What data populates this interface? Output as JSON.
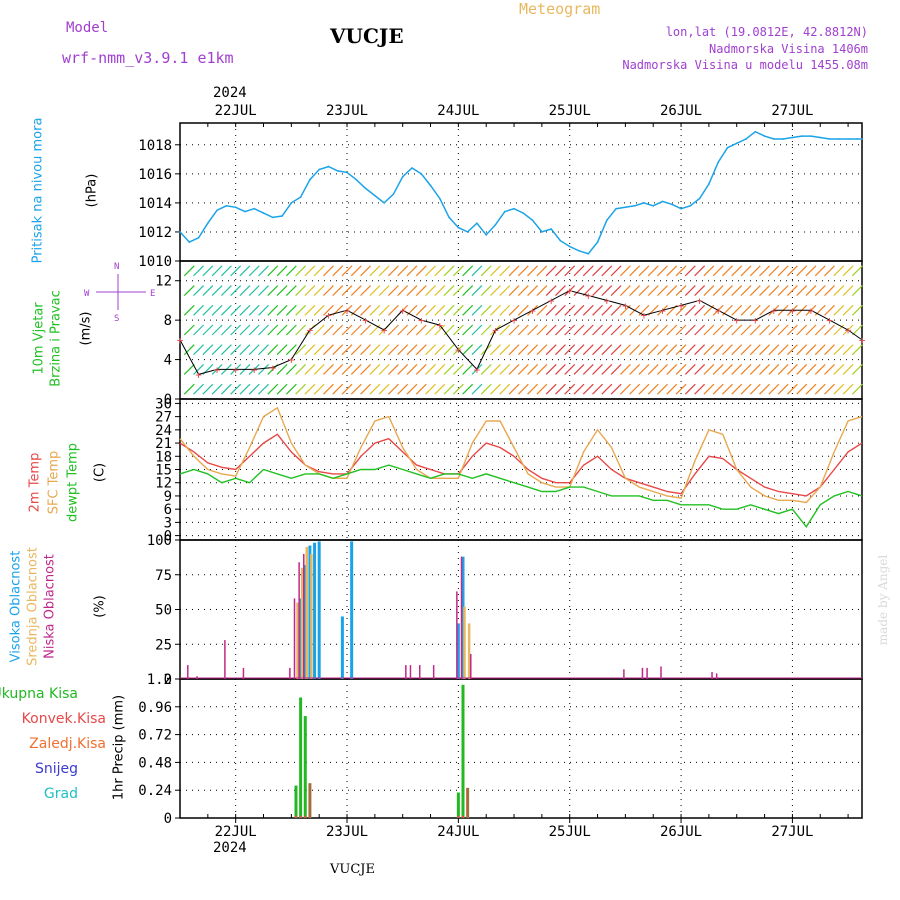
{
  "header": {
    "model_label": "Model",
    "model_name": "wrf-nmm_v3.9.1 e1km",
    "station": "VUCJE",
    "meteogram_label": "Meteogram",
    "location_line": "lon,lat (19.0812E, 42.8812N)",
    "elevation_line": "Nadmorska Visina 1406m",
    "model_elevation_line": "Nadmorska Visina u modelu 1455.08m",
    "footer_station": "VUCJE",
    "watermark": "made by Angel",
    "year": "2024"
  },
  "colors": {
    "pressure": "#1aa3e8",
    "temp2m": "#e84848",
    "sfc_temp": "#e8a850",
    "dewpoint": "#22c022",
    "high_cloud": "#1aa3e8",
    "mid_cloud": "#e8b860",
    "low_cloud": "#c0288a",
    "total_precip": "#22b822",
    "conv_precip": "#e84848",
    "frozen_precip": "#f07030",
    "snow": "#3a3ad0",
    "hail": "#20c0c0",
    "purple_text": "#a040d0",
    "orange_text": "#e8b860",
    "grid": "#000000"
  },
  "chart_data": [
    {
      "type": "line",
      "panel": "pressure",
      "ylabel_left": "Pritisak na nivou mora",
      "ylabel_unit": "(hPa)",
      "ylim": [
        1010,
        1019.5
      ],
      "yticks": [
        "1010",
        "1012",
        "1014",
        "1016",
        "1018"
      ],
      "xlim": [
        0,
        147
      ],
      "x_tick_labels": [
        "22JUL",
        "23JUL",
        "24JUL",
        "25JUL",
        "26JUL",
        "27JUL"
      ],
      "x_ticks_hours": [
        12,
        36,
        60,
        84,
        108,
        132
      ],
      "grid": true,
      "series": [
        {
          "x": [
            0,
            2,
            4,
            6,
            8,
            10,
            12,
            14,
            16,
            18,
            20,
            22,
            24,
            26,
            28,
            30,
            32,
            34,
            36,
            38,
            40,
            42,
            44,
            46,
            48,
            50,
            52,
            54,
            56,
            58,
            60,
            62,
            64,
            66,
            68,
            70,
            72,
            74,
            76,
            78,
            80,
            82,
            84,
            86,
            88,
            90,
            92,
            94,
            96,
            98,
            100,
            102,
            104,
            106,
            108,
            110,
            112,
            114,
            116,
            118,
            120,
            122,
            124,
            126,
            128,
            130,
            132,
            134,
            136,
            138,
            140,
            142,
            144,
            146,
            147
          ],
          "y": [
            1012.0,
            1011.3,
            1011.6,
            1012.6,
            1013.5,
            1013.8,
            1013.7,
            1013.4,
            1013.6,
            1013.3,
            1013.0,
            1013.1,
            1014.0,
            1014.4,
            1015.6,
            1016.3,
            1016.5,
            1016.2,
            1016.1,
            1015.6,
            1015.0,
            1014.5,
            1014.0,
            1014.6,
            1015.8,
            1016.4,
            1016.0,
            1015.2,
            1014.3,
            1013.0,
            1012.3,
            1012.0,
            1012.6,
            1011.8,
            1012.5,
            1013.4,
            1013.6,
            1013.3,
            1012.8,
            1012.0,
            1012.2,
            1011.4,
            1011.0,
            1010.7,
            1010.5,
            1011.3,
            1012.8,
            1013.6,
            1013.7,
            1013.8,
            1014.0,
            1013.8,
            1014.1,
            1013.9,
            1013.6,
            1013.8,
            1014.3,
            1015.3,
            1016.8,
            1017.8,
            1018.1,
            1018.4,
            1018.9,
            1018.6,
            1018.4,
            1018.4,
            1018.5,
            1018.6,
            1018.6,
            1018.5,
            1018.4,
            1018.4,
            1018.4,
            1018.4,
            1018.4
          ]
        }
      ]
    },
    {
      "type": "scatter",
      "panel": "wind",
      "ylabel_left": "10m Vjetar",
      "ylabel_left2": "Brzina i Pravac",
      "ylabel_unit": "(m/s)",
      "legend_compass": [
        "N",
        "W",
        "E",
        "S"
      ],
      "ylim": [
        0,
        14
      ],
      "yticks": [
        "0",
        "4",
        "8",
        "12"
      ],
      "grid": true,
      "series": [
        {
          "name": "speed",
          "x": [
            0,
            4,
            8,
            12,
            16,
            20,
            24,
            28,
            32,
            36,
            40,
            44,
            48,
            52,
            56,
            60,
            64,
            68,
            72,
            76,
            80,
            84,
            88,
            92,
            96,
            100,
            104,
            108,
            112,
            116,
            120,
            124,
            128,
            132,
            136,
            140,
            144,
            147
          ],
          "y": [
            6.0,
            2.5,
            3.0,
            3.0,
            3.0,
            3.2,
            4.0,
            7.0,
            8.5,
            9.0,
            8.0,
            7.0,
            9.0,
            8.0,
            7.5,
            5.0,
            3.0,
            7.0,
            8.0,
            9.0,
            10.0,
            11.0,
            10.5,
            10.0,
            9.5,
            8.5,
            9.0,
            9.5,
            10.0,
            9.0,
            8.0,
            8.0,
            9.0,
            9.0,
            9.0,
            8.0,
            7.0,
            6.0
          ]
        }
      ]
    },
    {
      "type": "line",
      "panel": "temperature",
      "ylabel_left": "2m Temp",
      "ylabel_left2": "SFC Temp",
      "ylabel_left3": "dewpt Temp",
      "ylabel_unit": "(C)",
      "ylim": [
        -1,
        31
      ],
      "yticks": [
        "0",
        "3",
        "6",
        "9",
        "12",
        "15",
        "18",
        "21",
        "24",
        "27",
        "30"
      ],
      "grid": true,
      "series": [
        {
          "name": "2m Temp",
          "x": [
            0,
            3,
            6,
            9,
            12,
            15,
            18,
            21,
            24,
            27,
            30,
            33,
            36,
            39,
            42,
            45,
            48,
            51,
            54,
            57,
            60,
            63,
            66,
            69,
            72,
            75,
            78,
            81,
            84,
            87,
            90,
            93,
            96,
            99,
            102,
            105,
            108,
            111,
            114,
            117,
            120,
            123,
            126,
            129,
            132,
            135,
            138,
            141,
            144,
            147
          ],
          "y": [
            21,
            19,
            16.5,
            15.5,
            15,
            18,
            21,
            23,
            19,
            16,
            14.5,
            14,
            14,
            18,
            21,
            22,
            19,
            16,
            15,
            14,
            14,
            18,
            21,
            20,
            18,
            15,
            13,
            12,
            12,
            16,
            18,
            15,
            13,
            12,
            11,
            10,
            9.5,
            14,
            18,
            17.5,
            15,
            13,
            11,
            10,
            9.5,
            9,
            11,
            15,
            19,
            21
          ]
        },
        {
          "name": "SFC Temp",
          "x": [
            0,
            3,
            6,
            9,
            12,
            15,
            18,
            21,
            24,
            27,
            30,
            33,
            36,
            39,
            42,
            45,
            48,
            51,
            54,
            57,
            60,
            63,
            66,
            69,
            72,
            75,
            78,
            81,
            84,
            87,
            90,
            93,
            96,
            99,
            102,
            105,
            108,
            111,
            114,
            117,
            120,
            123,
            126,
            129,
            132,
            135,
            138,
            141,
            144,
            147
          ],
          "y": [
            22,
            18,
            15,
            14,
            13.5,
            20,
            27,
            29,
            21,
            16,
            14,
            13,
            13,
            20,
            26,
            27,
            20,
            15,
            13,
            13,
            13,
            21,
            26,
            26,
            20,
            14,
            12,
            11,
            11,
            19,
            24,
            20,
            13,
            11,
            10,
            9,
            8.5,
            17,
            24,
            23,
            15,
            11,
            9,
            8,
            8,
            7.5,
            11,
            19,
            26,
            27
          ]
        },
        {
          "name": "dewpt Temp",
          "x": [
            0,
            3,
            6,
            9,
            12,
            15,
            18,
            21,
            24,
            27,
            30,
            33,
            36,
            39,
            42,
            45,
            48,
            51,
            54,
            57,
            60,
            63,
            66,
            69,
            72,
            75,
            78,
            81,
            84,
            87,
            90,
            93,
            96,
            99,
            102,
            105,
            108,
            111,
            114,
            117,
            120,
            123,
            126,
            129,
            132,
            135,
            138,
            141,
            144,
            147
          ],
          "y": [
            14,
            15,
            14,
            12,
            13,
            12,
            15,
            14,
            13,
            14,
            14,
            13,
            14,
            15,
            15,
            16,
            15,
            14,
            13,
            14,
            14,
            13,
            14,
            13,
            12,
            11,
            10,
            10,
            11,
            11,
            10,
            9,
            9,
            9,
            8,
            8,
            7,
            7,
            7,
            6,
            6,
            7,
            6,
            5,
            6,
            2,
            7,
            9,
            10,
            9
          ]
        }
      ]
    },
    {
      "type": "bar",
      "panel": "cloud",
      "ylabel_left": "Visoka Oblacnost",
      "ylabel_left2": "Srednja Oblacnost",
      "ylabel_left3": "Niska Oblacnost",
      "ylabel_unit": "(%)",
      "ylim": [
        0,
        100
      ],
      "yticks": [
        "0",
        "25",
        "50",
        "75",
        "100"
      ],
      "grid": true,
      "series": [
        {
          "name": "Visoka Oblacnost",
          "x": [
            26,
            27,
            28,
            29,
            30,
            35,
            37,
            60,
            61
          ],
          "values": [
            58,
            82,
            96,
            98,
            99,
            45,
            99,
            40,
            88
          ]
        },
        {
          "name": "Srednja Oblacnost",
          "x": [
            25,
            26,
            27,
            28,
            61,
            62
          ],
          "values": [
            55,
            80,
            95,
            90,
            52,
            40
          ]
        },
        {
          "name": "Niska Oblacnost",
          "x": [
            2,
            4,
            10,
            14,
            24,
            25,
            26,
            27,
            49,
            50,
            52,
            55,
            60,
            61,
            63,
            96,
            100,
            101,
            104,
            115,
            116
          ],
          "values": [
            10,
            2,
            28,
            8,
            8,
            58,
            84,
            90,
            10,
            10,
            10,
            10,
            63,
            88,
            18,
            7,
            8,
            8,
            9,
            5,
            4
          ]
        }
      ]
    },
    {
      "type": "bar",
      "panel": "precip",
      "ylabel_left_legend": [
        "Ukupna Kisa",
        "Konvek.Kisa",
        "Zaledj.Kisa",
        "Snijeg",
        "Grad"
      ],
      "ylabel_unit": "1hr Precip (mm)",
      "ylim": [
        0,
        1.2
      ],
      "yticks": [
        "0",
        "0.24",
        "0.48",
        "0.72",
        "0.96",
        "1.2"
      ],
      "grid": true,
      "series": [
        {
          "name": "Ukupna Kisa",
          "x": [
            25,
            26,
            27,
            28,
            60,
            61,
            62
          ],
          "values": [
            0.28,
            1.04,
            0.88,
            0.3,
            0.22,
            1.15,
            0.26
          ]
        },
        {
          "name": "Konvek.Kisa",
          "x": [
            25,
            26,
            27,
            28,
            60,
            61,
            62
          ],
          "values": [
            0.02,
            0.02,
            0.02,
            0.3,
            0.02,
            0.02,
            0.26
          ]
        }
      ]
    }
  ]
}
